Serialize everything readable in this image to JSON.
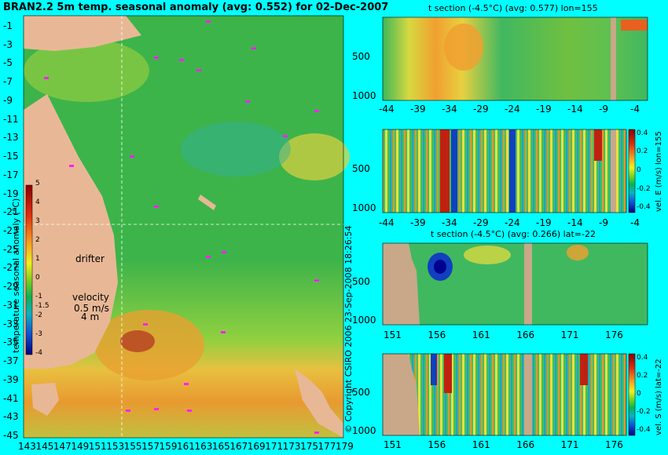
{
  "map": {
    "title": "BRAN2.2 5m temp. seasonal anomaly (avg: 0.552) for 02-Dec-2007",
    "lat_ticks": [
      "-1",
      "-3",
      "-5",
      "-7",
      "-9",
      "-11",
      "-13",
      "-15",
      "-17",
      "-19",
      "-21",
      "-23",
      "-25",
      "-27",
      "-29",
      "-31",
      "-33",
      "-35",
      "-37",
      "-39",
      "-41",
      "-43",
      "-45"
    ],
    "lon_ticks": [
      "143",
      "145",
      "147",
      "149",
      "151",
      "153",
      "155",
      "157",
      "159",
      "161",
      "163",
      "165",
      "167",
      "169",
      "171",
      "173",
      "175",
      "177",
      "179"
    ],
    "colorbar_label": "temperature seasonal anomaly (°C)",
    "colorbar_ticks": [
      "5",
      "4",
      "3",
      "2",
      "1",
      "0",
      "-1",
      "-1.5",
      "-2",
      "-3",
      "-4"
    ],
    "drifter_label": "drifter",
    "velocity_label": "velocity",
    "velocity_value": "0.5 m/s",
    "velocity_depth": "4 m",
    "copyright": "© Copyright CSIRO 2006  23-Sep-2008 18:26:54"
  },
  "sections": {
    "t_lon_title": "t section (-4.5°C) (avg: 0.577) lon=155",
    "t_lat_title": "t section (-4.5°C) (avg: 0.266) lat=-22",
    "depth_ticks": [
      "500",
      "1000"
    ],
    "lat_ticks": [
      "-44",
      "-39",
      "-34",
      "-29",
      "-24",
      "-19",
      "-14",
      "-9",
      "-4"
    ],
    "lon_ticks": [
      "151",
      "156",
      "161",
      "166",
      "171",
      "176"
    ],
    "vel_e_label": "vel. E (m/s) lon=155",
    "vel_s_label": "vel. S (m/s) lat=-22",
    "vel_ticks": [
      "0.4",
      "0.2",
      "0",
      "-0.2",
      "-0.4"
    ]
  },
  "chart_data": [
    {
      "type": "heatmap",
      "title": "BRAN2.2 5m temp. seasonal anomaly (avg: 0.552) for 02-Dec-2007",
      "xlabel": "",
      "ylabel": "",
      "xlim": [
        143,
        179
      ],
      "ylim": [
        -45,
        -1
      ],
      "colorbar": {
        "label": "temperature seasonal anomaly (°C)",
        "range": [
          -4,
          5
        ]
      }
    },
    {
      "type": "heatmap",
      "title": "t section (-4.5°C) (avg: 0.577) lon=155",
      "xlim": [
        -44,
        -4
      ],
      "ylim": [
        1000,
        0
      ]
    },
    {
      "type": "heatmap",
      "title": "",
      "xlim": [
        -44,
        -4
      ],
      "ylim": [
        1000,
        0
      ],
      "colorbar": {
        "label": "vel. E (m/s) lon=155",
        "range": [
          -0.4,
          0.4
        ]
      }
    },
    {
      "type": "heatmap",
      "title": "t section (-4.5°C) (avg: 0.266) lat=-22",
      "xlim": [
        151,
        179
      ],
      "ylim": [
        1000,
        0
      ]
    },
    {
      "type": "heatmap",
      "title": "",
      "xlim": [
        151,
        179
      ],
      "ylim": [
        1000,
        0
      ],
      "colorbar": {
        "label": "vel. S (m/s) lat=-22",
        "range": [
          -0.4,
          0.4
        ]
      }
    }
  ]
}
